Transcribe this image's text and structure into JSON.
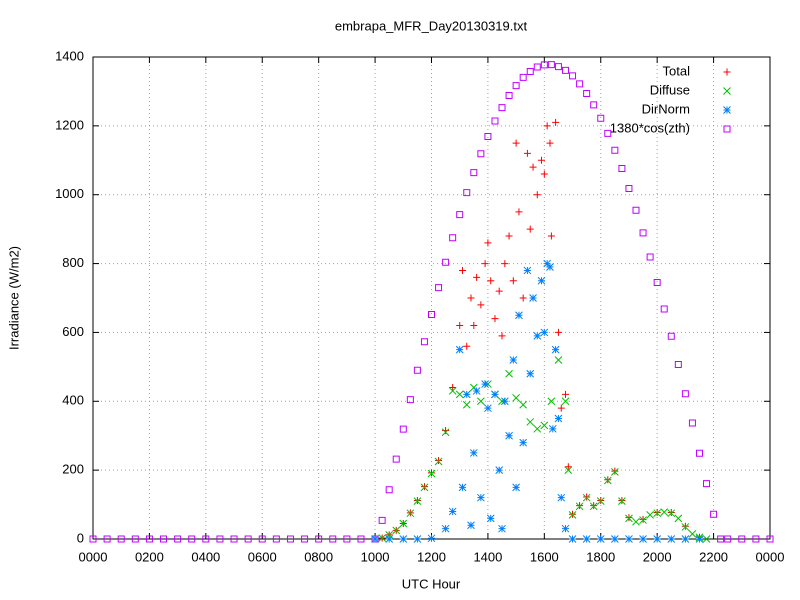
{
  "chart_data": {
    "type": "scatter",
    "title": "embrapa_MFR_Day20130319.txt",
    "x_label": "UTC Hour",
    "y_label": "Irradiance (W/m2)",
    "xlim": [
      0,
      24
    ],
    "xticks": [
      {
        "value": 0,
        "label": "0000"
      },
      {
        "value": 2,
        "label": "0200"
      },
      {
        "value": 4,
        "label": "0400"
      },
      {
        "value": 6,
        "label": "0600"
      },
      {
        "value": 8,
        "label": "0800"
      },
      {
        "value": 10,
        "label": "1000"
      },
      {
        "value": 12,
        "label": "1200"
      },
      {
        "value": 14,
        "label": "1400"
      },
      {
        "value": 16,
        "label": "1600"
      },
      {
        "value": 18,
        "label": "1800"
      },
      {
        "value": 20,
        "label": "2000"
      },
      {
        "value": 22,
        "label": "2200"
      },
      {
        "value": 24,
        "label": "0000"
      }
    ],
    "ylim": [
      0,
      1400
    ],
    "yticks": [
      0,
      200,
      400,
      600,
      800,
      1000,
      1200,
      1400
    ],
    "grid": true,
    "legend": "top-right",
    "series": [
      {
        "name": "Total",
        "color": "#ff0000",
        "marker": "plus",
        "x": [
          10.25,
          10.5,
          10.75,
          11,
          11.25,
          11.5,
          11.75,
          12,
          12.25,
          12.5,
          12.75,
          13,
          13.1,
          13.25,
          13.4,
          13.5,
          13.6,
          13.75,
          13.9,
          14,
          14.1,
          14.25,
          14.4,
          14.5,
          14.6,
          14.75,
          14.9,
          15,
          15.1,
          15.25,
          15.4,
          15.5,
          15.6,
          15.75,
          15.9,
          16,
          16.1,
          16.2,
          16.25,
          16.4,
          16.5,
          16.6,
          16.75,
          16.85,
          17,
          17.25,
          17.5,
          17.75,
          18,
          18.25,
          18.5,
          18.75,
          19,
          19.5,
          20,
          20.5,
          21,
          21.5
        ],
        "values": [
          3,
          12,
          25,
          45,
          76,
          112,
          152,
          192,
          228,
          315,
          440,
          620,
          780,
          560,
          700,
          620,
          760,
          680,
          800,
          860,
          750,
          640,
          720,
          590,
          800,
          880,
          750,
          1150,
          950,
          700,
          1120,
          900,
          1080,
          1000,
          1100,
          1060,
          1200,
          1150,
          880,
          1210,
          600,
          380,
          420,
          210,
          72,
          97,
          122,
          97,
          112,
          172,
          197,
          112,
          62,
          57,
          77,
          77,
          37,
          5
        ]
      },
      {
        "name": "Diffuse",
        "color": "#00c000",
        "marker": "cross",
        "x": [
          10.25,
          10.5,
          10.75,
          11,
          11.25,
          11.5,
          11.75,
          12,
          12.25,
          12.5,
          12.75,
          13,
          13.25,
          13.5,
          13.75,
          14,
          14.25,
          14.5,
          14.75,
          15,
          15.25,
          15.5,
          15.75,
          16,
          16.25,
          16.5,
          16.75,
          16.85,
          17,
          17.25,
          17.5,
          17.75,
          18,
          18.25,
          18.5,
          18.75,
          19,
          19.25,
          19.5,
          19.75,
          20,
          20.25,
          20.5,
          20.75,
          21,
          21.25,
          21.5,
          21.75
        ],
        "values": [
          3,
          12,
          25,
          45,
          75,
          110,
          150,
          190,
          225,
          310,
          430,
          420,
          390,
          440,
          400,
          450,
          420,
          400,
          480,
          410,
          390,
          340,
          320,
          330,
          400,
          520,
          400,
          200,
          70,
          95,
          120,
          95,
          110,
          170,
          195,
          110,
          60,
          50,
          55,
          70,
          75,
          78,
          75,
          60,
          35,
          15,
          5,
          0
        ]
      },
      {
        "name": "DirNorm",
        "color": "#0080ff",
        "marker": "star",
        "x": [
          10,
          10.5,
          11,
          11.5,
          12,
          12.5,
          12.75,
          13,
          13.1,
          13.25,
          13.4,
          13.5,
          13.6,
          13.75,
          13.9,
          14,
          14.1,
          14.25,
          14.4,
          14.5,
          14.6,
          14.75,
          14.9,
          15,
          15.1,
          15.25,
          15.4,
          15.5,
          15.6,
          15.75,
          15.9,
          16,
          16.1,
          16.2,
          16.3,
          16.4,
          16.5,
          16.6,
          16.75,
          17,
          17.5,
          18,
          18.5,
          19,
          19.5,
          20,
          20.5,
          21,
          21.5
        ],
        "values": [
          0,
          0,
          0,
          0,
          2,
          30,
          80,
          550,
          150,
          420,
          40,
          250,
          430,
          120,
          450,
          380,
          60,
          420,
          200,
          30,
          400,
          300,
          520,
          150,
          650,
          280,
          780,
          480,
          700,
          590,
          750,
          600,
          800,
          790,
          320,
          550,
          350,
          120,
          30,
          0,
          0,
          0,
          0,
          0,
          0,
          0,
          0,
          0,
          0
        ]
      },
      {
        "name": "1380*cos(zth)",
        "color": "#c000ff",
        "marker": "square",
        "x": [
          0,
          0.5,
          1,
          1.5,
          2,
          2.5,
          3,
          3.5,
          4,
          4.5,
          5,
          5.5,
          6,
          6.5,
          7,
          7.5,
          8,
          8.5,
          9,
          9.5,
          10,
          10.25,
          10.5,
          10.75,
          11,
          11.25,
          11.5,
          11.75,
          12,
          12.25,
          12.5,
          12.75,
          13,
          13.25,
          13.5,
          13.75,
          14,
          14.25,
          14.5,
          14.75,
          15,
          15.25,
          15.5,
          15.75,
          16,
          16.25,
          16.5,
          16.75,
          17,
          17.25,
          17.5,
          17.75,
          18,
          18.25,
          18.5,
          18.75,
          19,
          19.25,
          19.5,
          19.75,
          20,
          20.25,
          20.5,
          20.75,
          21,
          21.25,
          21.5,
          21.75,
          22,
          22.25,
          22.5,
          23,
          23.5,
          24
        ],
        "values": [
          0,
          0,
          0,
          0,
          0,
          0,
          0,
          0,
          0,
          0,
          0,
          0,
          0,
          0,
          0,
          0,
          0,
          0,
          0,
          0,
          0,
          54,
          143,
          232,
          319,
          405,
          490,
          573,
          652,
          730,
          804,
          875,
          942,
          1006,
          1064,
          1119,
          1169,
          1214,
          1253,
          1288,
          1317,
          1341,
          1358,
          1371,
          1377,
          1378,
          1372,
          1361,
          1345,
          1322,
          1294,
          1261,
          1222,
          1178,
          1129,
          1076,
          1018,
          955,
          889,
          819,
          745,
          668,
          589,
          507,
          422,
          337,
          249,
          161,
          72,
          0,
          0,
          0,
          0,
          0
        ]
      }
    ]
  }
}
